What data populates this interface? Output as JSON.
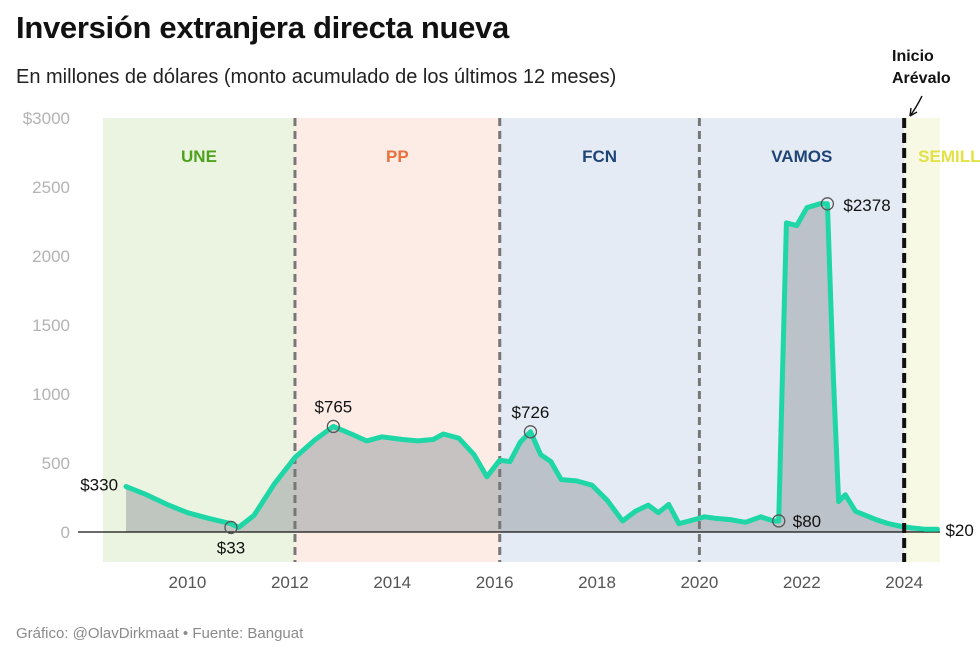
{
  "header": {
    "title": "Inversión extranjera directa nueva",
    "subtitle": "En millones de dólares (monto acumulado de los últimos 12 meses)"
  },
  "footer": {
    "source": "Gráfico: @OlavDirkmaat • Fuente: Banguat"
  },
  "chart_data": {
    "type": "area",
    "title": "Inversión extranjera directa nueva",
    "subtitle": "En millones de dólares (monto acumulado de los últimos 12 meses)",
    "xlabel": "",
    "ylabel": "",
    "xlim": [
      2008.35,
      2024.7
    ],
    "ylim": [
      -200,
      3000
    ],
    "yticks": [
      {
        "value": 3000,
        "label": "$3000"
      },
      {
        "value": 2500,
        "label": "2500"
      },
      {
        "value": 2000,
        "label": "2000"
      },
      {
        "value": 1500,
        "label": "1500"
      },
      {
        "value": 1000,
        "label": "1000"
      },
      {
        "value": 500,
        "label": "500"
      },
      {
        "value": 0,
        "label": "0"
      }
    ],
    "xticks": [
      {
        "value": 2010,
        "label": "2010"
      },
      {
        "value": 2012,
        "label": "2012"
      },
      {
        "value": 2014,
        "label": "2014"
      },
      {
        "value": 2016,
        "label": "2016"
      },
      {
        "value": 2018,
        "label": "2018"
      },
      {
        "value": 2020,
        "label": "2020"
      },
      {
        "value": 2022,
        "label": "2022"
      },
      {
        "value": 2024,
        "label": "2024"
      }
    ],
    "grid": false,
    "periods": [
      {
        "name": "UNE",
        "start": 2008.35,
        "end": 2012.1,
        "fill": "#ebf4e1",
        "label_color": "#4ea21d"
      },
      {
        "name": "PP",
        "start": 2012.1,
        "end": 2016.1,
        "fill": "#fdece5",
        "label_color": "#e8703a"
      },
      {
        "name": "FCN",
        "start": 2016.1,
        "end": 2020.0,
        "fill": "#e5ebf4",
        "label_color": "#1f4577"
      },
      {
        "name": "VAMOS",
        "start": 2020.0,
        "end": 2024.0,
        "fill": "#e5ebf4",
        "label_color": "#1f4577"
      },
      {
        "name": "SEMILLA",
        "start": 2024.0,
        "end": 2024.7,
        "fill": "#f8f9e4",
        "label_color": "#e2e245"
      }
    ],
    "boundaries": [
      2012.1,
      2016.1,
      2020.0
    ],
    "event": {
      "x": 2024.0,
      "label_line1": "Inicio",
      "label_line2": "Arévalo"
    },
    "series": [
      {
        "line_color": "#1ed6a6",
        "fill_color": "#9aa0a6",
        "x": [
          2008.8,
          2009.2,
          2009.6,
          2010.0,
          2010.4,
          2010.85,
          2011.0,
          2011.3,
          2011.7,
          2012.1,
          2012.5,
          2012.85,
          2013.2,
          2013.5,
          2013.8,
          2014.2,
          2014.5,
          2014.8,
          2015.0,
          2015.3,
          2015.6,
          2015.85,
          2016.1,
          2016.3,
          2016.5,
          2016.7,
          2016.9,
          2017.1,
          2017.3,
          2017.6,
          2017.9,
          2018.2,
          2018.5,
          2018.75,
          2019.0,
          2019.2,
          2019.4,
          2019.6,
          2019.8,
          2020.1,
          2020.3,
          2020.6,
          2020.9,
          2021.2,
          2021.45,
          2021.55,
          2021.7,
          2021.9,
          2022.1,
          2022.35,
          2022.5,
          2022.62,
          2022.72,
          2022.85,
          2023.05,
          2023.25,
          2023.45,
          2023.7,
          2023.95,
          2024.15,
          2024.4,
          2024.65
        ],
        "y": [
          330,
          270,
          200,
          140,
          100,
          60,
          33,
          120,
          350,
          540,
          670,
          765,
          710,
          660,
          690,
          670,
          660,
          670,
          710,
          680,
          560,
          400,
          520,
          510,
          650,
          726,
          560,
          510,
          380,
          370,
          340,
          230,
          80,
          150,
          195,
          140,
          200,
          60,
          80,
          110,
          100,
          90,
          70,
          110,
          80,
          80,
          2240,
          2220,
          2350,
          2378,
          2378,
          1100,
          220,
          270,
          150,
          120,
          90,
          60,
          40,
          30,
          20,
          20
        ]
      }
    ],
    "annotations": [
      {
        "x": 2008.8,
        "y": 330,
        "label": "$330",
        "circle": false
      },
      {
        "x": 2010.85,
        "y": 33,
        "label": "$33",
        "circle": true
      },
      {
        "x": 2012.85,
        "y": 765,
        "label": "$765",
        "circle": true
      },
      {
        "x": 2016.7,
        "y": 726,
        "label": "$726",
        "circle": true
      },
      {
        "x": 2021.55,
        "y": 80,
        "label": "$80",
        "circle": true
      },
      {
        "x": 2022.5,
        "y": 2378,
        "label": "$2378",
        "circle": true
      },
      {
        "x": 2024.65,
        "y": 20,
        "label": "$20",
        "circle": false
      }
    ]
  }
}
